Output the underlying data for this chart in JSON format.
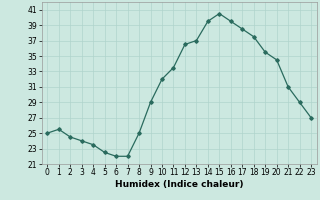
{
  "x": [
    0,
    1,
    2,
    3,
    4,
    5,
    6,
    7,
    8,
    9,
    10,
    11,
    12,
    13,
    14,
    15,
    16,
    17,
    18,
    19,
    20,
    21,
    22,
    23
  ],
  "y": [
    25,
    25.5,
    24.5,
    24,
    23.5,
    22.5,
    22,
    22,
    25,
    29,
    32,
    33.5,
    36.5,
    37,
    39.5,
    40.5,
    39.5,
    38.5,
    37.5,
    35.5,
    34.5,
    31,
    29,
    27
  ],
  "line_color": "#2a6b5e",
  "marker": "D",
  "marker_size": 1.8,
  "xlabel": "Humidex (Indice chaleur)",
  "xlim": [
    -0.5,
    23.5
  ],
  "ylim": [
    21,
    42
  ],
  "yticks": [
    21,
    23,
    25,
    27,
    29,
    31,
    33,
    35,
    37,
    39,
    41
  ],
  "xticks": [
    0,
    1,
    2,
    3,
    4,
    5,
    6,
    7,
    8,
    9,
    10,
    11,
    12,
    13,
    14,
    15,
    16,
    17,
    18,
    19,
    20,
    21,
    22,
    23
  ],
  "bg_color": "#cce8e0",
  "grid_color": "#b0d4cc",
  "tick_fontsize": 5.5,
  "xlabel_fontsize": 6.5,
  "line_width": 0.9
}
